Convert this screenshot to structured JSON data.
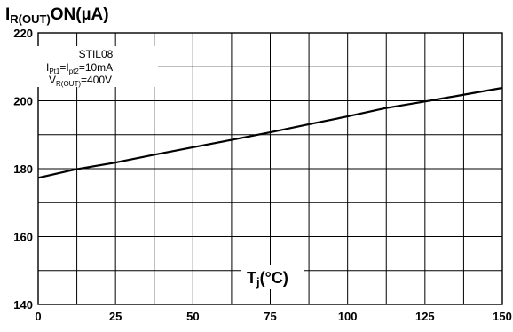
{
  "chart_data": {
    "type": "line",
    "ylabel": {
      "main": "I",
      "sub": "R(OUT)",
      "suffix": "ON(µA)"
    },
    "xlabel": {
      "main": "T",
      "sub": "j",
      "suffix": "(°C)"
    },
    "xlim": [
      0,
      150
    ],
    "ylim": [
      140,
      220
    ],
    "xticks": [
      0,
      25,
      50,
      75,
      100,
      125,
      150
    ],
    "yticks": [
      140,
      160,
      180,
      200,
      220
    ],
    "grid": true,
    "annotation": {
      "line1": "STIL08",
      "line2": {
        "a": "I",
        "a_sub": "Pt1",
        "eq": "=I",
        "b_sub": "pt2",
        "value": "=10mA"
      },
      "line3": {
        "a": "V",
        "a_sub": "R(OUT)",
        "value": "=400V"
      }
    },
    "series": [
      {
        "x": [
          0,
          12,
          25,
          37,
          50,
          62,
          75,
          87,
          100,
          112,
          125,
          137,
          150
        ],
        "y": [
          177.3,
          179.8,
          181.8,
          184.0,
          186.3,
          188.4,
          190.7,
          193.0,
          195.4,
          197.8,
          199.8,
          201.7,
          203.8
        ]
      }
    ]
  }
}
